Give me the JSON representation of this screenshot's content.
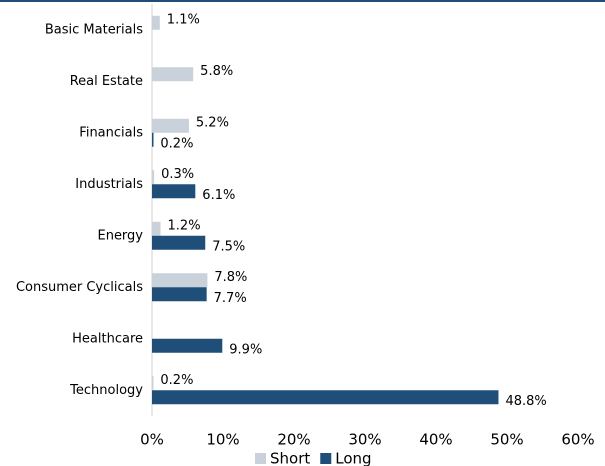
{
  "chart_data": {
    "type": "hbar",
    "categories": [
      "Basic Materials",
      "Real Estate",
      "Financials",
      "Industrials",
      "Energy",
      "Consumer Cyclicals",
      "Healthcare",
      "Technology"
    ],
    "series": [
      {
        "name": "Short",
        "color": "#c9d1da",
        "values": [
          1.1,
          5.8,
          5.2,
          0.3,
          1.2,
          7.8,
          null,
          0.2
        ],
        "value_labels": [
          "1.1%",
          "5.8%",
          "5.2%",
          "0.3%",
          "1.2%",
          "7.8%",
          null,
          "0.2%"
        ]
      },
      {
        "name": "Long",
        "color": "#1f4e79",
        "values": [
          null,
          null,
          0.2,
          6.1,
          7.5,
          7.7,
          9.9,
          48.8
        ],
        "value_labels": [
          null,
          null,
          "0.2%",
          "6.1%",
          "7.5%",
          "7.7%",
          "9.9%",
          "48.8%"
        ]
      }
    ],
    "xlim": [
      0,
      60
    ],
    "xticks": [
      {
        "value": 0,
        "label": "0%"
      },
      {
        "value": 10,
        "label": "10%"
      },
      {
        "value": 20,
        "label": "20%"
      },
      {
        "value": 30,
        "label": "30%"
      },
      {
        "value": 40,
        "label": "40%"
      },
      {
        "value": 50,
        "label": "50%"
      },
      {
        "value": 60,
        "label": "60%"
      }
    ],
    "legend": "bottom"
  }
}
